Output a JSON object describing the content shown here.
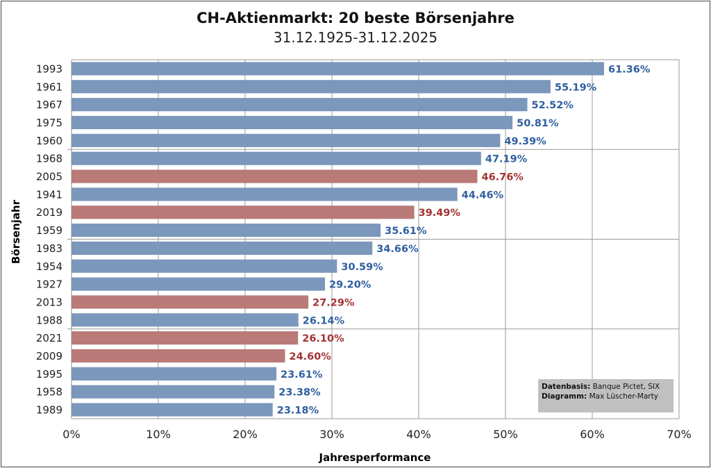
{
  "chart_data": {
    "type": "bar",
    "orientation": "horizontal",
    "title": "CH-Aktienmarkt: 20 beste Börsenjahre",
    "subtitle": "31.12.1925-31.12.2025",
    "xlabel": "Jahresperformance",
    "ylabel": "Börsenjahr",
    "xlim": [
      0,
      70
    ],
    "xticks": [
      "0%",
      "10%",
      "20%",
      "30%",
      "40%",
      "50%",
      "60%",
      "70%"
    ],
    "grid": true,
    "categories": [
      "1993",
      "1961",
      "1967",
      "1975",
      "1960",
      "1968",
      "2005",
      "1941",
      "2019",
      "1959",
      "1983",
      "1954",
      "1927",
      "2013",
      "1988",
      "2021",
      "2009",
      "1995",
      "1958",
      "1989"
    ],
    "values": [
      61.36,
      55.19,
      52.52,
      50.81,
      49.39,
      47.19,
      46.76,
      44.46,
      39.49,
      35.61,
      34.66,
      30.59,
      29.2,
      27.29,
      26.14,
      26.1,
      24.6,
      23.61,
      23.38,
      23.18
    ],
    "labels": [
      "61.36%",
      "55.19%",
      "52.52%",
      "50.81%",
      "49.39%",
      "47.19%",
      "46.76%",
      "44.46%",
      "39.49%",
      "35.61%",
      "34.66%",
      "30.59%",
      "29.20%",
      "27.29%",
      "26.14%",
      "26.10%",
      "24.60%",
      "23.61%",
      "23.38%",
      "23.18%"
    ],
    "highlight": [
      false,
      false,
      false,
      false,
      false,
      false,
      true,
      false,
      true,
      false,
      false,
      false,
      false,
      true,
      false,
      true,
      true,
      false,
      false,
      false
    ],
    "colors": {
      "bar": "#7b97bb",
      "bar_highlight": "#b97a78",
      "label": "#2f5f9f",
      "label_highlight": "#a33232"
    }
  },
  "note": {
    "source_label": "Datenbasis:",
    "source": "Banque Pictet, SIX",
    "chart_label": "Diagramm:",
    "chart_author": "Max Lüscher-Marty"
  }
}
